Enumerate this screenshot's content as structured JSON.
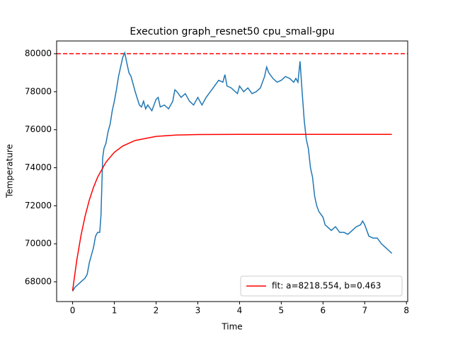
{
  "chart_data": {
    "type": "line",
    "title": "Execution graph_resnet50 cpu_small-gpu",
    "x_label": "Time",
    "y_label": "Temperature",
    "xlim": [
      -0.383,
      8.03
    ],
    "ylim": [
      66960,
      80670
    ],
    "xticks": [
      0,
      1,
      2,
      3,
      4,
      5,
      6,
      7,
      8
    ],
    "yticks": [
      68000,
      70000,
      72000,
      74000,
      76000,
      78000,
      80000
    ],
    "legend": "lower right",
    "reference_lines": [
      {
        "value": 80000,
        "color": "#ff0000"
      }
    ],
    "series": [
      {
        "color": "#1f77b4",
        "x": [
          0,
          0.05,
          0.1,
          0.2,
          0.3,
          0.35,
          0.4,
          0.5,
          0.55,
          0.6,
          0.65,
          0.68,
          0.72,
          0.75,
          0.8,
          0.85,
          0.9,
          0.95,
          1.0,
          1.05,
          1.1,
          1.15,
          1.2,
          1.25,
          1.3,
          1.35,
          1.4,
          1.5,
          1.6,
          1.65,
          1.7,
          1.75,
          1.8,
          1.9,
          2.0,
          2.05,
          2.1,
          2.2,
          2.3,
          2.4,
          2.45,
          2.5,
          2.6,
          2.7,
          2.8,
          2.9,
          3.0,
          3.1,
          3.2,
          3.3,
          3.4,
          3.5,
          3.6,
          3.65,
          3.7,
          3.8,
          3.9,
          3.95,
          4.0,
          4.1,
          4.2,
          4.3,
          4.4,
          4.5,
          4.6,
          4.65,
          4.7,
          4.8,
          4.9,
          5.0,
          5.1,
          5.2,
          5.3,
          5.35,
          5.4,
          5.45,
          5.5,
          5.55,
          5.6,
          5.65,
          5.7,
          5.75,
          5.8,
          5.85,
          5.9,
          6.0,
          6.05,
          6.1,
          6.2,
          6.3,
          6.4,
          6.5,
          6.6,
          6.7,
          6.8,
          6.9,
          6.95,
          7.0,
          7.1,
          7.2,
          7.3,
          7.4,
          7.5,
          7.55,
          7.65
        ],
        "values": [
          67500,
          67700,
          67800,
          68000,
          68200,
          68400,
          69000,
          69800,
          70400,
          70600,
          70600,
          71500,
          74500,
          75000,
          75300,
          75900,
          76300,
          77000,
          77500,
          78100,
          78800,
          79300,
          79800,
          80050,
          79500,
          79000,
          78800,
          78000,
          77300,
          77200,
          77500,
          77100,
          77300,
          77000,
          77600,
          77700,
          77200,
          77300,
          77100,
          77500,
          78100,
          78000,
          77700,
          77900,
          77500,
          77300,
          77700,
          77300,
          77700,
          78000,
          78300,
          78600,
          78500,
          78900,
          78300,
          78200,
          78000,
          77900,
          78300,
          78000,
          78200,
          77900,
          78000,
          78200,
          78800,
          79300,
          79000,
          78700,
          78500,
          78600,
          78800,
          78700,
          78500,
          78700,
          78500,
          79600,
          78000,
          76500,
          75500,
          75000,
          74000,
          73500,
          72500,
          72000,
          71700,
          71400,
          71000,
          70900,
          70700,
          70900,
          70600,
          70600,
          70500,
          70700,
          70900,
          71000,
          71200,
          71000,
          70400,
          70300,
          70300,
          70000,
          69800,
          69700,
          69500
        ]
      },
      {
        "name": "fit: a=8218.554, b=0.463",
        "color": "#ff0000",
        "x": [
          0,
          0.1,
          0.2,
          0.3,
          0.4,
          0.5,
          0.6,
          0.8,
          1.0,
          1.2,
          1.5,
          2.0,
          2.5,
          3.0,
          4.0,
          5.0,
          6.0,
          7.0,
          7.65
        ],
        "values": [
          67540,
          69134,
          70425,
          71460,
          72298,
          72964,
          73507,
          74296,
          74813,
          75143,
          75436,
          75649,
          75722,
          75746,
          75757,
          75758,
          75758,
          75758,
          75758
        ]
      }
    ]
  }
}
